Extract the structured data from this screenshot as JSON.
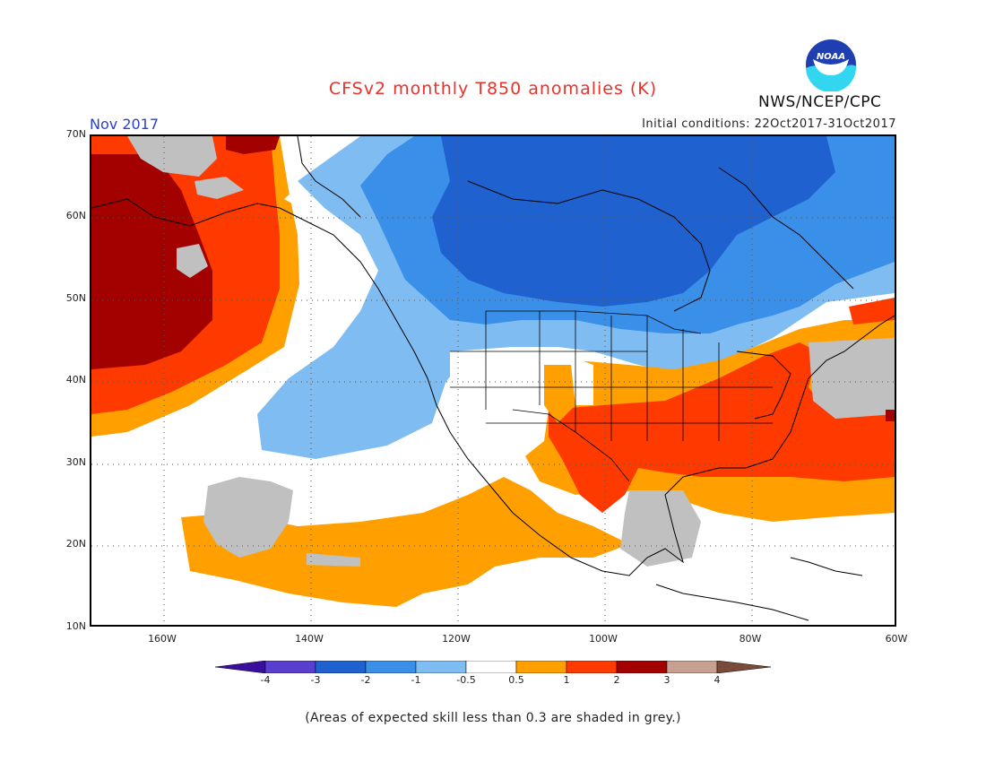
{
  "header": {
    "title": "CFSv2 monthly T850 anomalies (K)",
    "month": "Nov 2017",
    "initial_conditions": "Initial conditions: 22Oct2017-31Oct2017",
    "agency": "NWS/NCEP/CPC",
    "logo_text": "NOAA"
  },
  "map": {
    "lat_labels": [
      "70N",
      "60N",
      "50N",
      "40N",
      "30N",
      "20N",
      "10N"
    ],
    "lon_labels": [
      "160W",
      "140W",
      "120W",
      "100W",
      "80W",
      "60W"
    ],
    "colors": {
      "lt_-4": "#3a0f9e",
      "-4_-3": "#5a3fcf",
      "-3_-2": "#1f62cf",
      "-2_-1": "#3a8fe8",
      "-1_-0.5": "#7fbcf2",
      "-0.5_0.5": "#ffffff",
      "0.5_1": "#ffa000",
      "1_2": "#ff3a00",
      "2_3": "#a30000",
      "3_4": "#c8a090",
      "gt_4": "#7a4a3a",
      "low_skill": "#c0c0c0"
    }
  },
  "colorbar": {
    "ticks": [
      "-4",
      "-3",
      "-2",
      "-1",
      "-0.5",
      "0.5",
      "1",
      "2",
      "3",
      "4"
    ]
  },
  "footnote": "(Areas of expected skill less than 0.3 are shaded in grey.)"
}
